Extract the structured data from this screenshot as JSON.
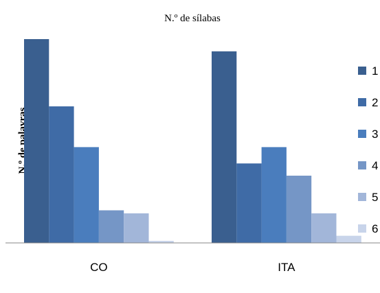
{
  "chart_data": {
    "type": "bar",
    "title": "N.º de sílabas",
    "xlabel": "",
    "ylabel": "N.º de palavras",
    "categories": [
      "CO",
      "ITA"
    ],
    "ylim": [
      0,
      100
    ],
    "grid": false,
    "legend_position": "right",
    "series": [
      {
        "name": "1",
        "color": "#3A5F8F",
        "values": [
          100,
          94
        ]
      },
      {
        "name": "2",
        "color": "#3F6BA6",
        "values": [
          67,
          39
        ]
      },
      {
        "name": "3",
        "color": "#4A7DBD",
        "values": [
          47,
          47
        ]
      },
      {
        "name": "4",
        "color": "#7596C6",
        "values": [
          16,
          33
        ]
      },
      {
        "name": "5",
        "color": "#A2B6D9",
        "values": [
          14.5,
          14.5
        ]
      },
      {
        "name": "6",
        "color": "#C8D4EA",
        "values": [
          1,
          3.5
        ]
      }
    ]
  }
}
